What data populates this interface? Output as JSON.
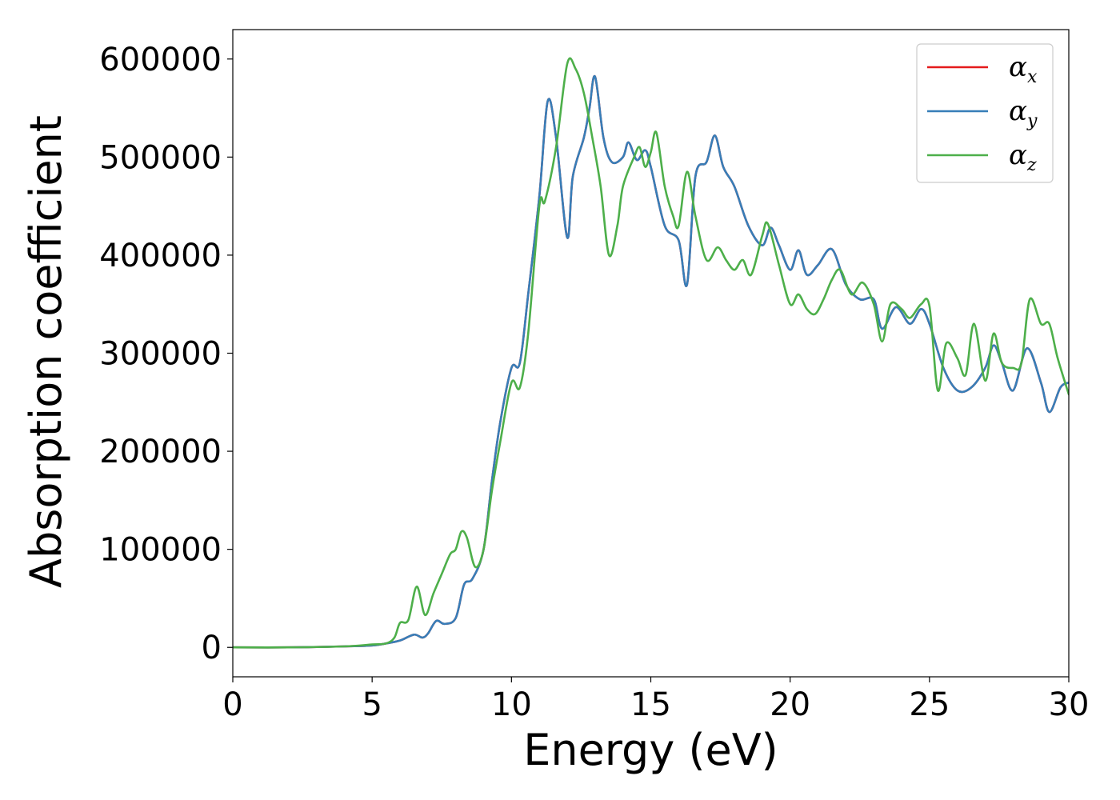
{
  "chart_data": {
    "type": "line",
    "xlabel": "Energy (eV)",
    "ylabel": "Absorption coefficient",
    "xlim": [
      0,
      30
    ],
    "ylim": [
      -30000,
      630000
    ],
    "xticks": [
      0,
      5,
      10,
      15,
      20,
      25,
      30
    ],
    "xtick_labels": [
      "0",
      "5",
      "10",
      "15",
      "20",
      "25",
      "30"
    ],
    "yticks": [
      0,
      100000,
      200000,
      300000,
      400000,
      500000,
      600000
    ],
    "ytick_labels": [
      "0",
      "100000",
      "200000",
      "300000",
      "400000",
      "500000",
      "600000"
    ],
    "grid": false,
    "legend_position": "top-right",
    "series": [
      {
        "name": "α_x",
        "legend_symbol": "α",
        "legend_subscript": "x",
        "color": "#e41a1c",
        "x": [
          0,
          2,
          4,
          5,
          5.5,
          6,
          6.5,
          6.8,
          7.0,
          7.3,
          7.6,
          8.0,
          8.3,
          8.6,
          9.0,
          9.3,
          9.6,
          10.0,
          10.3,
          10.6,
          11.0,
          11.3,
          11.6,
          12.0,
          12.2,
          12.6,
          12.8,
          13.0,
          13.3,
          13.6,
          14.0,
          14.2,
          14.5,
          14.8,
          15.0,
          15.5,
          16.0,
          16.3,
          16.6,
          17.0,
          17.3,
          17.6,
          18.0,
          18.5,
          19.0,
          19.3,
          19.6,
          20.0,
          20.3,
          20.6,
          21.0,
          21.5,
          22.0,
          22.5,
          23.0,
          23.3,
          23.8,
          24.3,
          24.7,
          25.0,
          25.5,
          26.0,
          26.5,
          27.0,
          27.3,
          27.6,
          28.0,
          28.5,
          29.0,
          29.3,
          29.7,
          30.0
        ],
        "y": [
          0,
          0,
          1000,
          2000,
          4000,
          7000,
          13000,
          10000,
          14000,
          27000,
          24000,
          30000,
          64000,
          70000,
          100000,
          170000,
          230000,
          285000,
          290000,
          360000,
          460000,
          557000,
          520000,
          418000,
          480000,
          520000,
          550000,
          582000,
          520000,
          495000,
          500000,
          515000,
          497000,
          507000,
          490000,
          430000,
          415000,
          370000,
          480000,
          495000,
          522000,
          490000,
          470000,
          430000,
          410000,
          428000,
          410000,
          385000,
          405000,
          380000,
          390000,
          406000,
          370000,
          355000,
          355000,
          325000,
          347000,
          330000,
          345000,
          330000,
          285000,
          262000,
          265000,
          285000,
          308000,
          290000,
          262000,
          305000,
          270000,
          240000,
          265000,
          270000
        ]
      },
      {
        "name": "α_y",
        "legend_symbol": "α",
        "legend_subscript": "y",
        "color": "#377eb8",
        "x": [
          0,
          2,
          4,
          5,
          5.5,
          6,
          6.5,
          6.8,
          7.0,
          7.3,
          7.6,
          8.0,
          8.3,
          8.6,
          9.0,
          9.3,
          9.6,
          10.0,
          10.3,
          10.6,
          11.0,
          11.3,
          11.6,
          12.0,
          12.2,
          12.6,
          12.8,
          13.0,
          13.3,
          13.6,
          14.0,
          14.2,
          14.5,
          14.8,
          15.0,
          15.5,
          16.0,
          16.3,
          16.6,
          17.0,
          17.3,
          17.6,
          18.0,
          18.5,
          19.0,
          19.3,
          19.6,
          20.0,
          20.3,
          20.6,
          21.0,
          21.5,
          22.0,
          22.5,
          23.0,
          23.3,
          23.8,
          24.3,
          24.7,
          25.0,
          25.5,
          26.0,
          26.5,
          27.0,
          27.3,
          27.6,
          28.0,
          28.5,
          29.0,
          29.3,
          29.7,
          30.0
        ],
        "y": [
          0,
          0,
          1000,
          2000,
          4000,
          7000,
          13000,
          10000,
          14000,
          27000,
          24000,
          30000,
          64000,
          70000,
          100000,
          170000,
          230000,
          285000,
          290000,
          360000,
          460000,
          557000,
          520000,
          418000,
          480000,
          520000,
          550000,
          582000,
          520000,
          495000,
          500000,
          515000,
          497000,
          507000,
          490000,
          430000,
          415000,
          370000,
          480000,
          495000,
          522000,
          490000,
          470000,
          430000,
          410000,
          428000,
          410000,
          385000,
          405000,
          380000,
          390000,
          406000,
          370000,
          355000,
          355000,
          325000,
          347000,
          330000,
          345000,
          330000,
          285000,
          262000,
          265000,
          285000,
          308000,
          290000,
          262000,
          305000,
          270000,
          240000,
          265000,
          270000
        ]
      },
      {
        "name": "α_z",
        "legend_symbol": "α",
        "legend_subscript": "z",
        "color": "#4daf4a",
        "x": [
          0,
          2,
          4,
          5,
          5.5,
          5.8,
          6.0,
          6.3,
          6.6,
          6.9,
          7.2,
          7.5,
          7.8,
          8.0,
          8.2,
          8.4,
          8.7,
          9.0,
          9.3,
          9.6,
          10.0,
          10.3,
          10.6,
          11.0,
          11.2,
          11.6,
          12.0,
          12.3,
          12.6,
          12.9,
          13.2,
          13.5,
          13.8,
          14.0,
          14.4,
          14.6,
          14.8,
          15.0,
          15.2,
          15.5,
          15.8,
          16.0,
          16.3,
          16.6,
          17.0,
          17.4,
          17.7,
          18.0,
          18.3,
          18.6,
          19.0,
          19.2,
          19.6,
          20.0,
          20.3,
          20.6,
          20.9,
          21.2,
          21.5,
          21.8,
          22.2,
          22.6,
          23.0,
          23.3,
          23.6,
          24.0,
          24.3,
          24.7,
          25.0,
          25.3,
          25.6,
          26.0,
          26.3,
          26.6,
          27.0,
          27.3,
          27.6,
          28.0,
          28.3,
          28.6,
          29.0,
          29.3,
          29.6,
          30.0
        ],
        "y": [
          0,
          0,
          1000,
          3000,
          4000,
          10000,
          25000,
          28000,
          62000,
          33000,
          55000,
          75000,
          95000,
          100000,
          118000,
          112000,
          82000,
          100000,
          160000,
          210000,
          270000,
          265000,
          320000,
          450000,
          455000,
          510000,
          595000,
          590000,
          565000,
          520000,
          470000,
          400000,
          430000,
          470000,
          500000,
          510000,
          490000,
          505000,
          525000,
          470000,
          440000,
          430000,
          485000,
          440000,
          395000,
          408000,
          395000,
          385000,
          395000,
          380000,
          420000,
          432000,
          390000,
          350000,
          360000,
          345000,
          340000,
          355000,
          375000,
          385000,
          360000,
          372000,
          350000,
          312000,
          350000,
          345000,
          336000,
          350000,
          348000,
          262000,
          310000,
          295000,
          278000,
          330000,
          272000,
          320000,
          290000,
          285000,
          290000,
          355000,
          330000,
          330000,
          295000,
          258000
        ]
      }
    ]
  }
}
